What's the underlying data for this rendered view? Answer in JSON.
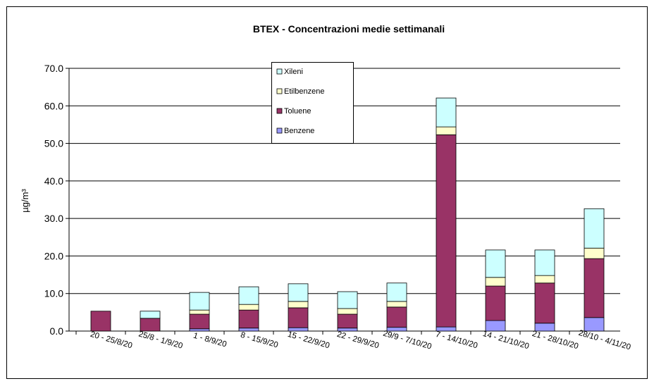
{
  "chart_data": {
    "type": "stacked-bar",
    "title": "BTEX - Concentrazioni medie settimanali",
    "y_label": "µg/m³",
    "categories": [
      "20 - 25/8/20",
      "25/8 - 1/9/20",
      "1 - 8/9/20",
      "8 - 15/9/20",
      "15 - 22/9/20",
      "22 - 29/9/20",
      "29/9 - 7/10/20",
      "7 - 14/10/20",
      "14 - 21/10/20",
      "21 - 28/10/20",
      "28/10 - 4/11/20"
    ],
    "series": [
      {
        "name": "Benzene",
        "color": "#9999ff",
        "values": [
          0,
          0,
          0.6,
          0.8,
          0.9,
          0.8,
          1.0,
          1.1,
          2.8,
          2.1,
          3.6
        ]
      },
      {
        "name": "Toluene",
        "color": "#993366",
        "values": [
          5.3,
          3.4,
          3.9,
          4.8,
          5.3,
          3.7,
          5.4,
          51.2,
          9.2,
          10.7,
          15.7
        ]
      },
      {
        "name": "Etilbenzene",
        "color": "#ffffcc",
        "values": [
          0,
          0,
          1.1,
          1.5,
          1.7,
          1.5,
          1.5,
          2.1,
          2.3,
          2.0,
          2.8
        ]
      },
      {
        "name": "Xileni",
        "color": "#ccffff",
        "values": [
          0,
          1.9,
          4.7,
          4.7,
          4.7,
          4.5,
          4.9,
          7.7,
          7.3,
          6.8,
          10.5
        ]
      }
    ],
    "ylim": [
      0,
      70
    ],
    "yticks": [
      {
        "value": 0,
        "label": "0.0"
      },
      {
        "value": 10,
        "label": "10.0"
      },
      {
        "value": 20,
        "label": "20.0"
      },
      {
        "value": 30,
        "label": "30.0"
      },
      {
        "value": 40,
        "label": "40.0"
      },
      {
        "value": 50,
        "label": "50.0"
      },
      {
        "value": 60,
        "label": "60.0"
      },
      {
        "value": 70,
        "label": "70.0"
      }
    ],
    "grid": true
  }
}
